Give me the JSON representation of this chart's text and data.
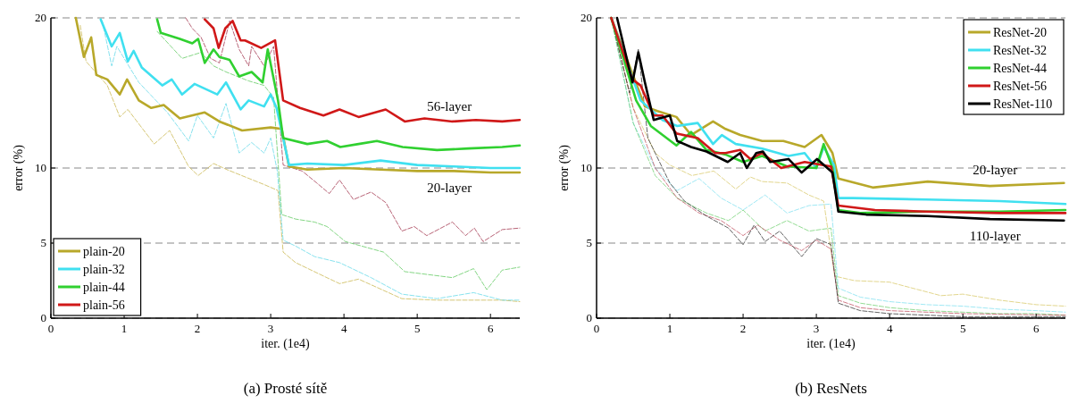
{
  "chart_data": [
    {
      "type": "line",
      "title": "(a) Prosté sítě",
      "xlabel": "iter. (1e4)",
      "ylabel": "error (%)",
      "xlim": [
        0,
        6.4
      ],
      "ylim": [
        0,
        20
      ],
      "xticks": [
        0,
        1,
        2,
        3,
        4,
        5,
        6
      ],
      "yticks": [
        0,
        5,
        10,
        20
      ],
      "grid": "y",
      "legend": "bottom left",
      "annotations": [
        "56-layer",
        "20-layer"
      ],
      "series": [
        {
          "color": "#c8b44a",
          "line_style": "dashed",
          "x": [
            0.4,
            0.48,
            0.77,
            0.94,
            1.05,
            1.41,
            1.62,
            1.88,
            2.01,
            2.22,
            2.4,
            2.91,
            3.1,
            3.17,
            3.34,
            3.68,
            3.94,
            4.2,
            4.79,
            5.27,
            6.16,
            6.4
          ],
          "values": [
            19.5,
            17.1,
            15.5,
            13.4,
            13.9,
            11.6,
            12.5,
            10.1,
            9.5,
            10.3,
            9.9,
            8.9,
            8.5,
            4.4,
            3.7,
            2.9,
            2.3,
            2.6,
            1.3,
            1.2,
            1.2,
            1.1
          ]
        },
        {
          "color": "#60d8e8",
          "line_style": "dashed",
          "x": [
            0.7,
            0.83,
            0.9,
            1.2,
            1.59,
            1.88,
            2.0,
            2.22,
            2.39,
            2.57,
            2.74,
            2.91,
            3.0,
            3.09,
            3.17,
            3.34,
            3.6,
            3.94,
            4.37,
            4.79,
            5.27,
            5.77,
            6.16,
            6.4
          ],
          "values": [
            19.8,
            16.8,
            18.1,
            15.7,
            13.7,
            11.8,
            13.5,
            12.0,
            14.3,
            11.0,
            11.7,
            11.0,
            12.0,
            9.8,
            5.2,
            4.8,
            4.1,
            3.7,
            2.7,
            1.6,
            1.3,
            1.7,
            1.2,
            1.2
          ]
        },
        {
          "color": "#5cc85c",
          "line_style": "dashed",
          "x": [
            1.45,
            1.79,
            2.05,
            2.22,
            2.39,
            2.7,
            2.91,
            3.04,
            3.15,
            3.34,
            3.6,
            3.77,
            4.02,
            4.54,
            4.83,
            5.48,
            5.77,
            5.95,
            6.16,
            6.4
          ],
          "values": [
            19.1,
            17.3,
            17.7,
            16.8,
            16.4,
            15.8,
            15.5,
            14.7,
            6.9,
            6.6,
            6.4,
            6.1,
            5.1,
            4.4,
            3.1,
            2.7,
            3.3,
            1.9,
            3.2,
            3.4
          ]
        },
        {
          "color": "#a0304a",
          "line_style": "dashed",
          "x": [
            1.84,
            1.93,
            2.05,
            2.18,
            2.3,
            2.44,
            2.57,
            2.7,
            2.74,
            2.91,
            3.04,
            3.17,
            3.43,
            3.63,
            3.8,
            3.94,
            4.13,
            4.37,
            4.57,
            4.79,
            4.96,
            5.13,
            5.48,
            5.66,
            5.78,
            5.9,
            6.16,
            6.4
          ],
          "values": [
            20,
            19.3,
            18.7,
            17.3,
            17.0,
            19.8,
            17.9,
            16.8,
            18.1,
            16.8,
            18.1,
            10.2,
            9.8,
            9.0,
            8.3,
            9.2,
            7.9,
            8.4,
            7.7,
            5.8,
            6.1,
            5.5,
            6.4,
            5.5,
            6.0,
            5.1,
            5.9,
            6.0
          ]
        },
        {
          "name": "plain-20",
          "color": "#b8a82a",
          "line_style": "solid",
          "x": [
            0.34,
            0.45,
            0.55,
            0.62,
            0.77,
            0.94,
            1.04,
            1.2,
            1.37,
            1.54,
            1.76,
            2.1,
            2.3,
            2.61,
            3.0,
            3.15,
            3.25,
            3.5,
            4.0,
            4.5,
            5.0,
            5.5,
            6.0,
            6.4
          ],
          "values": [
            20,
            17.4,
            18.7,
            16.2,
            15.9,
            14.9,
            15.9,
            14.5,
            14.0,
            14.2,
            13.3,
            13.7,
            13.1,
            12.5,
            12.7,
            12.6,
            10.1,
            9.9,
            10.0,
            9.9,
            9.8,
            9.8,
            9.7,
            9.7
          ]
        },
        {
          "name": "plain-32",
          "color": "#40e0f0",
          "line_style": "solid",
          "x": [
            0.68,
            0.83,
            0.94,
            1.05,
            1.13,
            1.24,
            1.52,
            1.65,
            1.79,
            1.96,
            2.27,
            2.39,
            2.59,
            2.7,
            2.91,
            3.0,
            3.08,
            3.25,
            3.5,
            4.0,
            4.5,
            5.0,
            5.5,
            6.0,
            6.4
          ],
          "values": [
            19.9,
            18.1,
            19.0,
            17.1,
            17.8,
            16.7,
            15.5,
            15.9,
            14.9,
            15.6,
            14.9,
            15.7,
            13.9,
            14.5,
            14.1,
            14.9,
            14.0,
            10.2,
            10.3,
            10.2,
            10.5,
            10.2,
            10.1,
            10.0,
            10.0
          ]
        },
        {
          "name": "plain-44",
          "color": "#30d030",
          "line_style": "solid",
          "x": [
            1.45,
            1.5,
            1.76,
            1.93,
            2.01,
            2.1,
            2.22,
            2.3,
            2.44,
            2.57,
            2.74,
            2.89,
            2.96,
            3.1,
            3.17,
            3.5,
            3.77,
            3.95,
            4.2,
            4.45,
            4.8,
            5.27,
            5.7,
            6.16,
            6.4
          ],
          "values": [
            19.9,
            19.0,
            18.6,
            18.3,
            18.6,
            17.0,
            17.9,
            17.4,
            17.2,
            16.1,
            16.4,
            15.7,
            17.9,
            14.5,
            12.0,
            11.6,
            11.8,
            11.4,
            11.6,
            11.8,
            11.4,
            11.2,
            11.3,
            11.4,
            11.5
          ]
        },
        {
          "name": "plain-56",
          "color": "#d01818",
          "line_style": "solid",
          "x": [
            2.1,
            2.22,
            2.29,
            2.38,
            2.48,
            2.59,
            2.65,
            2.87,
            3.06,
            3.17,
            3.4,
            3.72,
            3.94,
            4.2,
            4.57,
            4.83,
            5.1,
            5.48,
            5.8,
            6.16,
            6.4
          ],
          "values": [
            19.9,
            19.3,
            18.0,
            19.3,
            19.8,
            18.5,
            18.5,
            18.0,
            18.5,
            14.5,
            14.0,
            13.5,
            13.9,
            13.4,
            13.9,
            13.1,
            13.3,
            13.1,
            13.2,
            13.1,
            13.2
          ]
        }
      ]
    },
    {
      "type": "line",
      "title": "(b) ResNets",
      "xlabel": "iter. (1e4)",
      "ylabel": "error (%)",
      "xlim": [
        0,
        6.4
      ],
      "ylim": [
        0,
        20
      ],
      "xticks": [
        0,
        1,
        2,
        3,
        4,
        5,
        6
      ],
      "yticks": [
        0,
        5,
        10,
        20
      ],
      "grid": "y",
      "legend": "top right",
      "annotations": [
        "20-layer",
        "110-layer"
      ],
      "series": [
        {
          "color": "#d8c868",
          "line_style": "dashed",
          "x": [
            0.2,
            0.5,
            0.8,
            1.0,
            1.3,
            1.6,
            1.9,
            2.1,
            2.26,
            2.6,
            2.9,
            3.1,
            3.25,
            3.52,
            4.0,
            4.7,
            5.0,
            5.5,
            6.0,
            6.4
          ],
          "values": [
            20,
            14,
            11,
            10.2,
            9.5,
            9.8,
            8.6,
            9.4,
            9.1,
            9.0,
            8.2,
            7.8,
            2.8,
            2.5,
            2.4,
            1.5,
            1.6,
            1.2,
            0.9,
            0.8
          ]
        },
        {
          "color": "#80e0f0",
          "line_style": "dashed",
          "x": [
            0.2,
            0.5,
            0.8,
            1.1,
            1.4,
            1.7,
            2.0,
            2.3,
            2.6,
            2.9,
            3.2,
            3.3,
            3.6,
            4.0,
            4.5,
            5.0,
            5.5,
            6.0,
            6.4
          ],
          "values": [
            20,
            13,
            10,
            8.5,
            9.3,
            8.0,
            7.2,
            8.2,
            7.0,
            7.5,
            7.6,
            2.0,
            1.4,
            1.1,
            0.9,
            0.8,
            0.6,
            0.5,
            0.4
          ]
        },
        {
          "color": "#70d070",
          "line_style": "dashed",
          "x": [
            0.2,
            0.5,
            0.8,
            1.1,
            1.5,
            1.8,
            2.0,
            2.3,
            2.6,
            2.9,
            3.2,
            3.3,
            3.6,
            4.0,
            4.5,
            5.0,
            5.5,
            6.0,
            6.4
          ],
          "values": [
            20,
            13,
            9.5,
            8.0,
            7.0,
            6.5,
            7.2,
            5.8,
            6.5,
            5.8,
            6.0,
            1.5,
            1.0,
            0.7,
            0.5,
            0.4,
            0.3,
            0.3,
            0.2
          ]
        },
        {
          "color": "#c05060",
          "line_style": "dashed",
          "x": [
            0.2,
            0.5,
            0.8,
            1.1,
            1.4,
            1.7,
            2.0,
            2.2,
            2.5,
            2.8,
            3.0,
            3.2,
            3.3,
            3.6,
            4.0,
            4.5,
            5.0,
            6.4
          ],
          "values": [
            20,
            14,
            10,
            8.0,
            7.0,
            6.5,
            5.5,
            6.2,
            5.2,
            4.5,
            5.2,
            4.6,
            1.2,
            0.7,
            0.5,
            0.4,
            0.3,
            0.2
          ]
        },
        {
          "color": "#303030",
          "line_style": "dashed",
          "x": [
            0.2,
            0.45,
            0.57,
            0.7,
            1.0,
            1.2,
            1.5,
            1.8,
            2.0,
            2.15,
            2.3,
            2.5,
            2.8,
            3.0,
            3.2,
            3.3,
            3.6,
            4.0,
            4.5,
            5.0,
            6.4
          ],
          "values": [
            20,
            15,
            17.9,
            12,
            9,
            7.8,
            6.8,
            6.0,
            4.9,
            6.2,
            5.1,
            5.8,
            4.1,
            5.3,
            4.9,
            1.0,
            0.5,
            0.3,
            0.2,
            0.1,
            0.1
          ]
        },
        {
          "name": "ResNet-20",
          "color": "#b8a82a",
          "line_style": "solid",
          "x": [
            0.2,
            0.66,
            0.83,
            1.09,
            1.29,
            1.59,
            1.76,
            1.96,
            2.26,
            2.55,
            2.84,
            3.07,
            3.22,
            3.3,
            3.77,
            4.52,
            5.37,
            6.38
          ],
          "values": [
            20,
            14.1,
            13.8,
            13.4,
            12.2,
            13.1,
            12.6,
            12.2,
            11.8,
            11.8,
            11.4,
            12.2,
            11.0,
            9.3,
            8.7,
            9.1,
            8.8,
            9.0
          ]
        },
        {
          "name": "ResNet-32",
          "color": "#40e0f0",
          "line_style": "solid",
          "x": [
            0.2,
            0.6,
            0.9,
            1.1,
            1.38,
            1.59,
            1.71,
            1.9,
            2.26,
            2.62,
            2.84,
            3.0,
            3.1,
            3.24,
            3.3,
            3.5,
            4.5,
            5.5,
            6.4
          ],
          "values": [
            20,
            14.5,
            13.2,
            12.8,
            13.0,
            11.6,
            12.2,
            11.6,
            11.3,
            10.8,
            11.0,
            10.0,
            11.4,
            10.2,
            8.0,
            8.0,
            7.9,
            7.8,
            7.6
          ]
        },
        {
          "name": "ResNet-44",
          "color": "#30d030",
          "line_style": "solid",
          "x": [
            0.2,
            0.54,
            0.74,
            1.09,
            1.29,
            1.5,
            1.76,
            2.0,
            2.26,
            2.6,
            3.0,
            3.1,
            3.22,
            3.3,
            3.6,
            4.5,
            5.5,
            6.4
          ],
          "values": [
            20,
            14.5,
            12.8,
            11.5,
            12.4,
            11.2,
            10.9,
            10.4,
            10.8,
            10.1,
            10.0,
            11.6,
            10.0,
            7.2,
            7.0,
            7.1,
            7.1,
            7.2
          ]
        },
        {
          "name": "ResNet-56",
          "color": "#d01818",
          "line_style": "solid",
          "x": [
            0.2,
            0.49,
            0.6,
            0.78,
            0.9,
            1.09,
            1.38,
            1.62,
            1.76,
            1.96,
            2.1,
            2.26,
            2.52,
            2.84,
            3.2,
            3.3,
            3.8,
            4.5,
            5.5,
            6.4
          ],
          "values": [
            20,
            15.9,
            15.5,
            13.5,
            13.5,
            12.3,
            12.0,
            11.0,
            11.0,
            11.2,
            10.6,
            11.0,
            10.0,
            10.4,
            10.1,
            7.5,
            7.2,
            7.1,
            7.0,
            7.0
          ]
        },
        {
          "name": "ResNet-110",
          "color": "#000000",
          "line_style": "solid",
          "x": [
            0.28,
            0.49,
            0.57,
            0.66,
            0.78,
            1.0,
            1.1,
            1.29,
            1.5,
            1.79,
            1.96,
            2.05,
            2.18,
            2.27,
            2.37,
            2.62,
            2.8,
            3.01,
            3.22,
            3.3,
            3.68,
            4.52,
            5.37,
            6.38
          ],
          "values": [
            20,
            15.7,
            17.7,
            15.7,
            13.2,
            13.5,
            11.8,
            11.4,
            11.1,
            10.4,
            11.0,
            10.0,
            11.0,
            11.1,
            10.4,
            10.6,
            9.7,
            10.6,
            9.7,
            7.1,
            6.9,
            6.8,
            6.6,
            6.5
          ]
        }
      ]
    }
  ]
}
